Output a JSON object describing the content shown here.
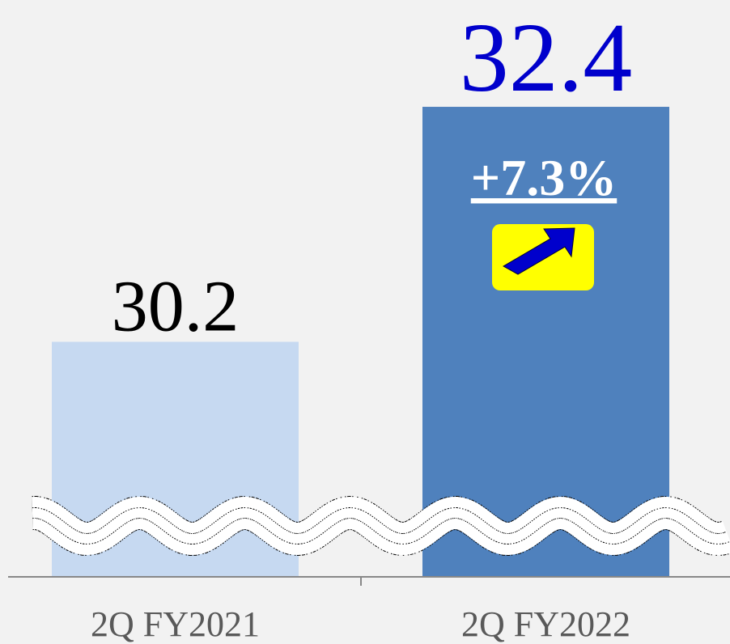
{
  "chart_data": {
    "type": "bar",
    "categories": [
      "2Q FY2021",
      "2Q FY2022"
    ],
    "values": [
      30.2,
      32.4
    ],
    "colors": [
      "#c6d9f1",
      "#4f81bd"
    ],
    "label_colors": [
      "#000000",
      "#0000cc"
    ],
    "ylim": [
      28,
      33.4
    ],
    "annotations": [
      "+7.3%"
    ]
  }
}
